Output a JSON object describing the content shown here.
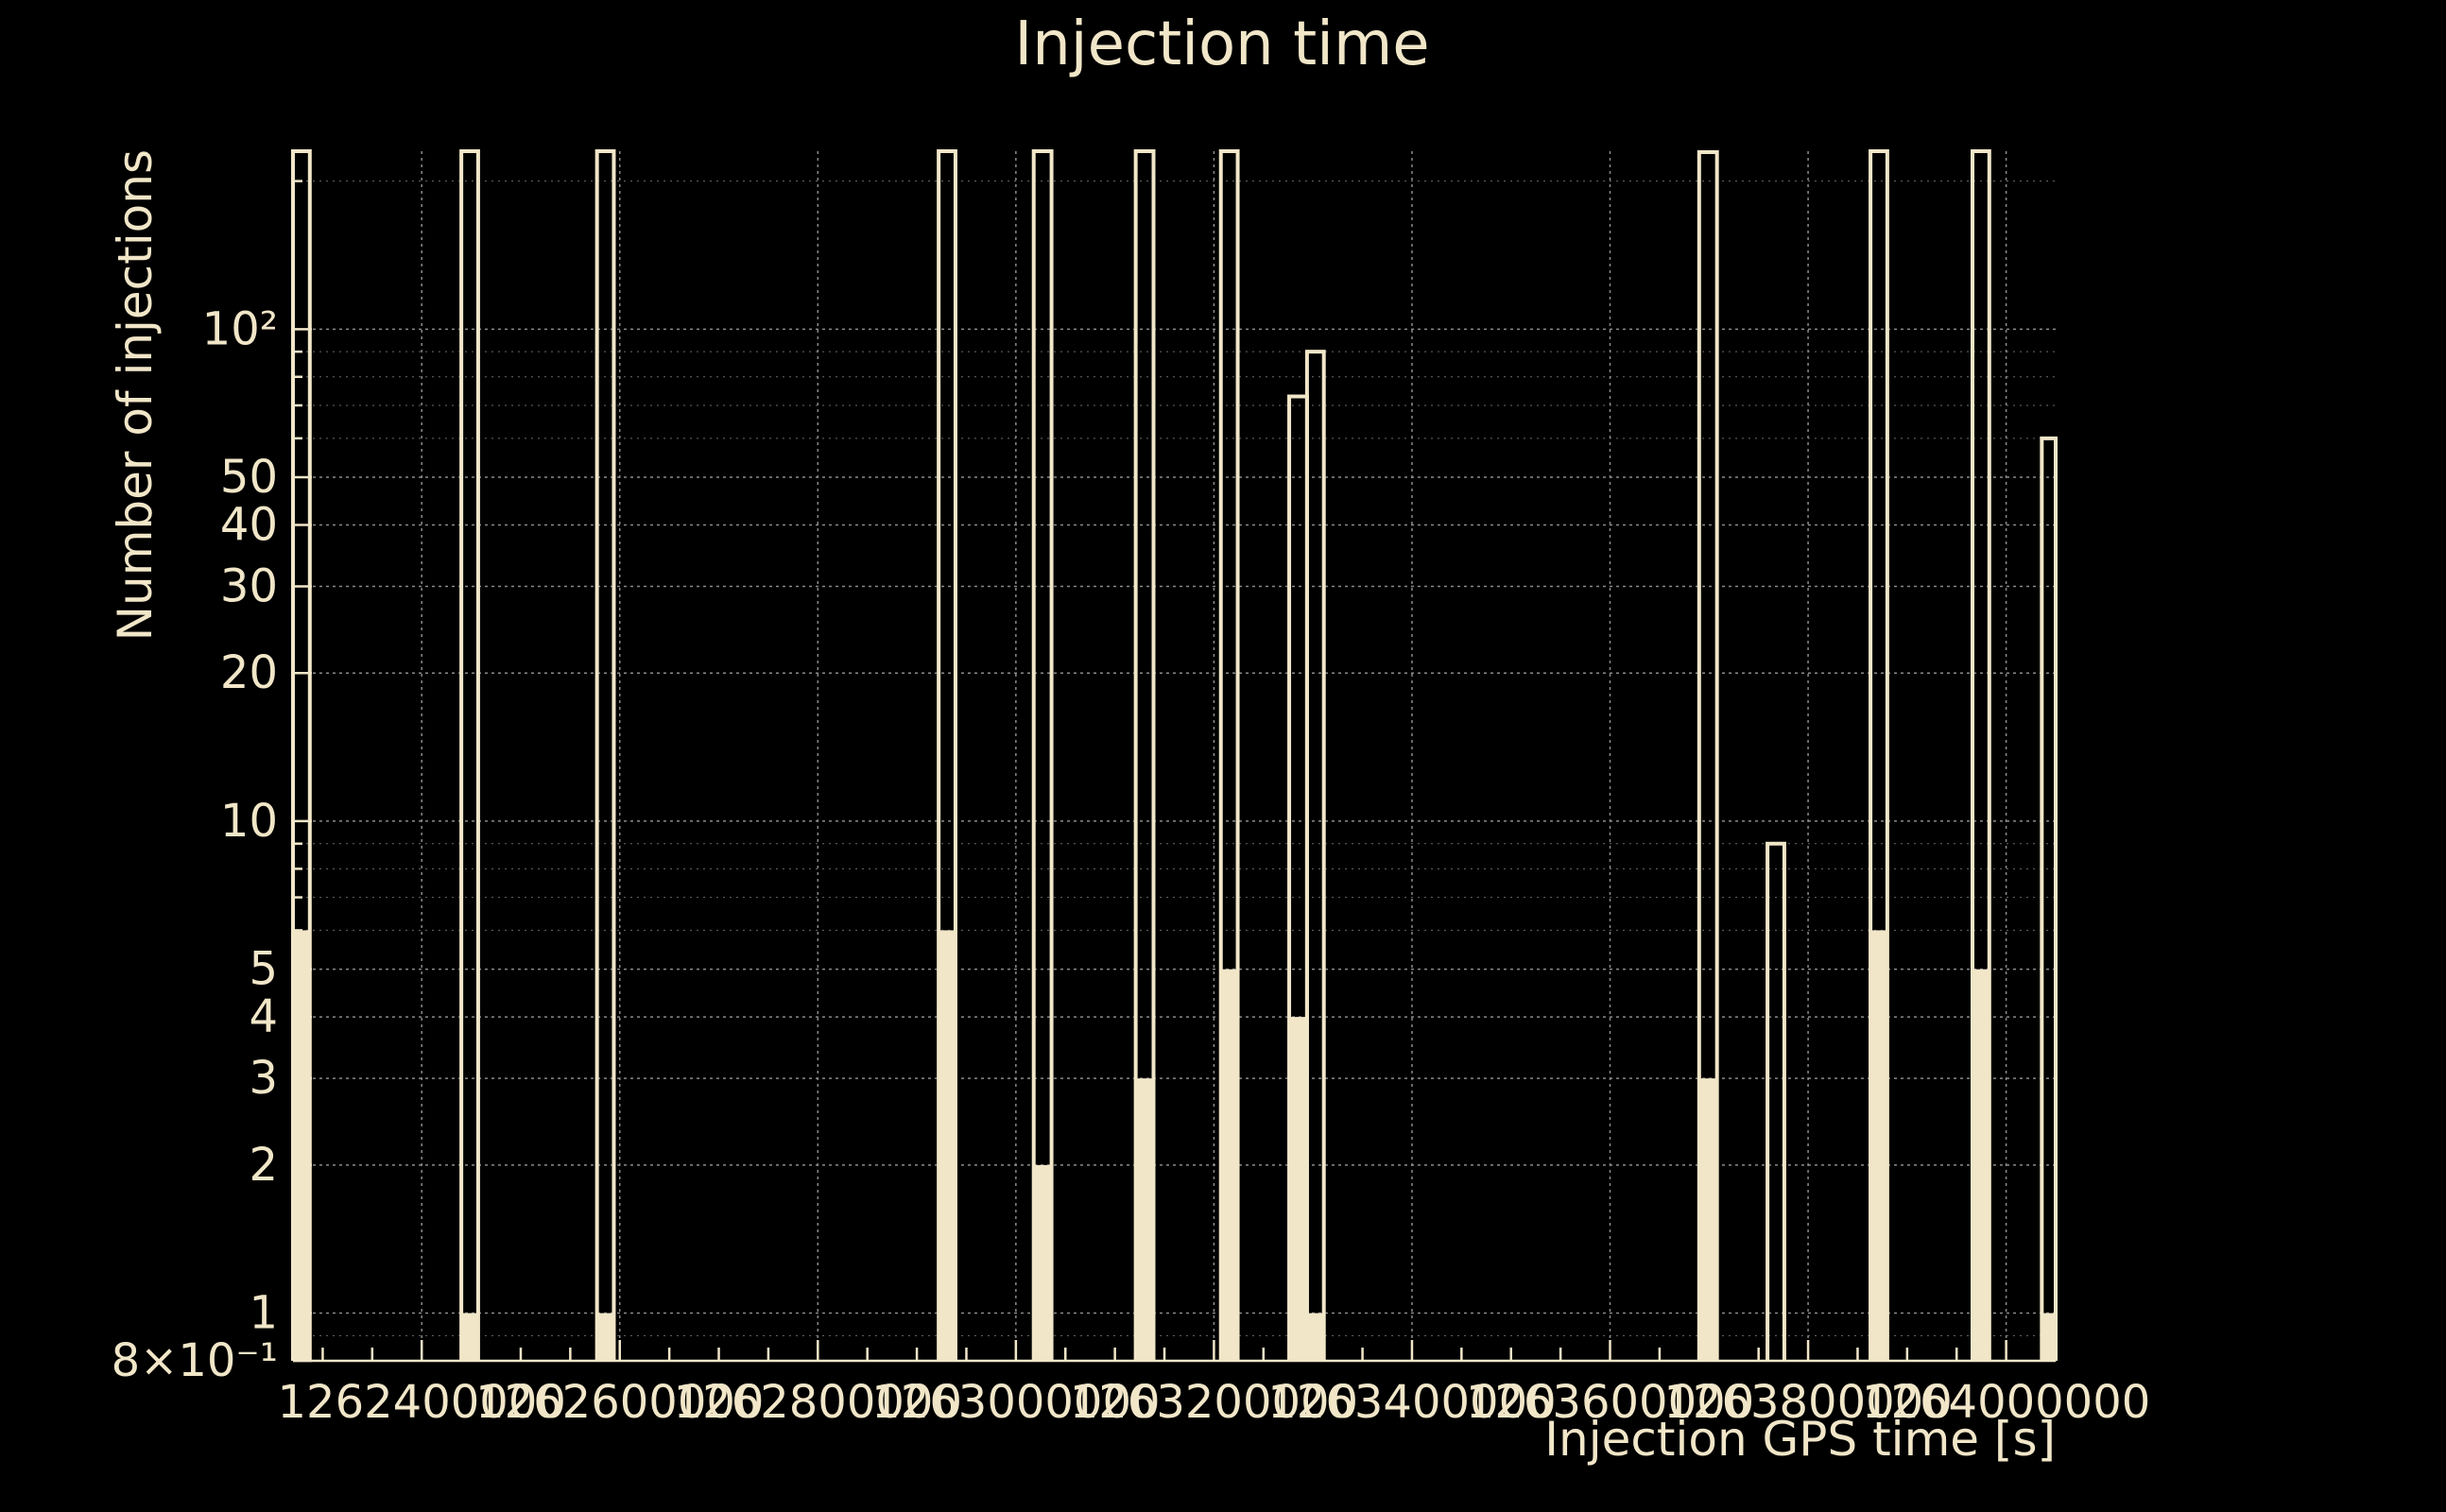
{
  "chart_data": {
    "type": "bar",
    "title": "Injection time",
    "xlabel": "Injection GPS time [s]",
    "ylabel": "Number of injections",
    "yscale": "log",
    "xlim": [
      1262270000,
      1264050000
    ],
    "ylim": [
      0.8,
      230
    ],
    "grid": true,
    "colors": {
      "background": "#000000",
      "foreground": "#f1e6c8",
      "grid": "#8a8a8a"
    },
    "x_tick_values": [
      1262400000,
      1262600000,
      1262800000,
      1263000000,
      1263200000,
      1263400000,
      1263600000,
      1263800000,
      1264000000
    ],
    "x_tick_labels": [
      "1262400000",
      "1262600000",
      "1262800000",
      "1263000000",
      "1263200000",
      "1263400000",
      "1263600000",
      "1263800000",
      "1264000000"
    ],
    "y_tick_values": [
      0.8,
      1,
      2,
      3,
      4,
      5,
      10,
      20,
      30,
      40,
      50,
      100
    ],
    "y_tick_labels": [
      "8×10⁻¹",
      "1",
      "2",
      "3",
      "4",
      "5",
      "10",
      "20",
      "30",
      "40",
      "50",
      "10²"
    ],
    "series": [
      {
        "style": "step-outline",
        "bins": [
          {
            "x0": 1262270000,
            "x1": 1262287000,
            "value": 230
          },
          {
            "x0": 1262440000,
            "x1": 1262457000,
            "value": 230
          },
          {
            "x0": 1262577000,
            "x1": 1262594000,
            "value": 230
          },
          {
            "x0": 1262922000,
            "x1": 1262939000,
            "value": 231
          },
          {
            "x0": 1263018000,
            "x1": 1263036000,
            "value": 230
          },
          {
            "x0": 1263121000,
            "x1": 1263139000,
            "value": 230
          },
          {
            "x0": 1263207000,
            "x1": 1263224000,
            "value": 230
          },
          {
            "x0": 1263276000,
            "x1": 1263294000,
            "value": 73
          },
          {
            "x0": 1263294000,
            "x1": 1263311000,
            "value": 90
          },
          {
            "x0": 1263690000,
            "x1": 1263708000,
            "value": 229
          },
          {
            "x0": 1263759000,
            "x1": 1263776000,
            "value": 9
          },
          {
            "x0": 1263863000,
            "x1": 1263880000,
            "value": 230
          },
          {
            "x0": 1263966000,
            "x1": 1263983000,
            "value": 231
          },
          {
            "x0": 1264036000,
            "x1": 1264050000,
            "value": 60
          }
        ]
      },
      {
        "style": "filled",
        "bins": [
          {
            "x0": 1262270000,
            "x1": 1262287000,
            "value": 6
          },
          {
            "x0": 1262440000,
            "x1": 1262457000,
            "value": 1
          },
          {
            "x0": 1262577000,
            "x1": 1262594000,
            "value": 1
          },
          {
            "x0": 1262922000,
            "x1": 1262939000,
            "value": 6
          },
          {
            "x0": 1263018000,
            "x1": 1263036000,
            "value": 2
          },
          {
            "x0": 1263121000,
            "x1": 1263139000,
            "value": 3
          },
          {
            "x0": 1263207000,
            "x1": 1263224000,
            "value": 5
          },
          {
            "x0": 1263276000,
            "x1": 1263294000,
            "value": 4
          },
          {
            "x0": 1263294000,
            "x1": 1263311000,
            "value": 1
          },
          {
            "x0": 1263690000,
            "x1": 1263708000,
            "value": 3
          },
          {
            "x0": 1263863000,
            "x1": 1263880000,
            "value": 6
          },
          {
            "x0": 1263966000,
            "x1": 1263983000,
            "value": 5
          },
          {
            "x0": 1264036000,
            "x1": 1264050000,
            "value": 1
          }
        ]
      }
    ]
  }
}
